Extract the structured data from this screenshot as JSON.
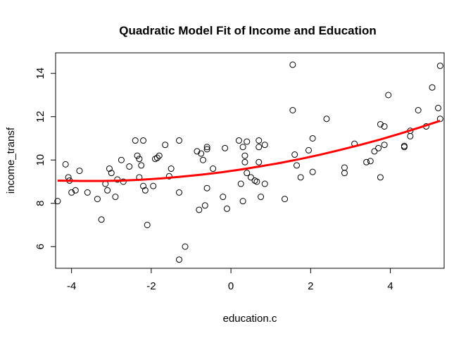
{
  "chart_data": {
    "type": "scatter",
    "title": "Quadratic Model Fit of Income and Education",
    "xlabel": "education.c",
    "ylabel": "income_transf",
    "xlim": [
      -4.4,
      5.35
    ],
    "ylim": [
      5.0,
      14.95
    ],
    "xticks": [
      -4,
      -2,
      0,
      2,
      4
    ],
    "yticks": [
      6,
      8,
      10,
      12,
      14
    ],
    "xtick_labels": [
      "-4",
      "-2",
      "0",
      "2",
      "4"
    ],
    "ytick_labels": [
      "6",
      "8",
      "10",
      "12",
      "14"
    ],
    "grid": false,
    "point_color": "#000000",
    "fit_color": "#ff0000",
    "points": [
      {
        "x": -4.35,
        "y": 8.1
      },
      {
        "x": -4.15,
        "y": 9.8
      },
      {
        "x": -4.08,
        "y": 9.2
      },
      {
        "x": -4.05,
        "y": 9.05
      },
      {
        "x": -4.0,
        "y": 8.5
      },
      {
        "x": -3.9,
        "y": 8.6
      },
      {
        "x": -3.8,
        "y": 9.5
      },
      {
        "x": -3.6,
        "y": 8.5
      },
      {
        "x": -3.35,
        "y": 8.2
      },
      {
        "x": -3.25,
        "y": 7.25
      },
      {
        "x": -3.15,
        "y": 8.9
      },
      {
        "x": -3.1,
        "y": 8.6
      },
      {
        "x": -3.05,
        "y": 9.6
      },
      {
        "x": -3.0,
        "y": 9.4
      },
      {
        "x": -2.9,
        "y": 8.3
      },
      {
        "x": -2.85,
        "y": 9.1
      },
      {
        "x": -2.75,
        "y": 10.0
      },
      {
        "x": -2.7,
        "y": 9.0
      },
      {
        "x": -2.55,
        "y": 9.7
      },
      {
        "x": -2.4,
        "y": 10.9
      },
      {
        "x": -2.35,
        "y": 10.2
      },
      {
        "x": -2.3,
        "y": 10.05
      },
      {
        "x": -2.3,
        "y": 9.2
      },
      {
        "x": -2.25,
        "y": 9.75
      },
      {
        "x": -2.2,
        "y": 10.9
      },
      {
        "x": -2.2,
        "y": 8.8
      },
      {
        "x": -2.15,
        "y": 8.6
      },
      {
        "x": -2.1,
        "y": 7.0
      },
      {
        "x": -1.95,
        "y": 8.8
      },
      {
        "x": -1.9,
        "y": 10.05
      },
      {
        "x": -1.85,
        "y": 10.1
      },
      {
        "x": -1.8,
        "y": 10.2
      },
      {
        "x": -1.65,
        "y": 10.7
      },
      {
        "x": -1.55,
        "y": 9.25
      },
      {
        "x": -1.5,
        "y": 9.6
      },
      {
        "x": -1.3,
        "y": 10.9
      },
      {
        "x": -1.3,
        "y": 8.5
      },
      {
        "x": -1.3,
        "y": 5.4
      },
      {
        "x": -1.15,
        "y": 6.0
      },
      {
        "x": -0.85,
        "y": 10.4
      },
      {
        "x": -0.8,
        "y": 7.7
      },
      {
        "x": -0.75,
        "y": 10.3
      },
      {
        "x": -0.7,
        "y": 10.0
      },
      {
        "x": -0.65,
        "y": 7.9
      },
      {
        "x": -0.6,
        "y": 10.5
      },
      {
        "x": -0.6,
        "y": 10.6
      },
      {
        "x": -0.6,
        "y": 8.7
      },
      {
        "x": -0.45,
        "y": 9.6
      },
      {
        "x": -0.2,
        "y": 8.3
      },
      {
        "x": -0.15,
        "y": 10.55
      },
      {
        "x": -0.1,
        "y": 7.75
      },
      {
        "x": 0.2,
        "y": 10.9
      },
      {
        "x": 0.25,
        "y": 8.9
      },
      {
        "x": 0.3,
        "y": 10.6
      },
      {
        "x": 0.3,
        "y": 8.1
      },
      {
        "x": 0.35,
        "y": 10.2
      },
      {
        "x": 0.35,
        "y": 9.9
      },
      {
        "x": 0.4,
        "y": 10.85
      },
      {
        "x": 0.4,
        "y": 9.4
      },
      {
        "x": 0.5,
        "y": 9.2
      },
      {
        "x": 0.6,
        "y": 9.05
      },
      {
        "x": 0.65,
        "y": 9.0
      },
      {
        "x": 0.7,
        "y": 10.9
      },
      {
        "x": 0.7,
        "y": 10.6
      },
      {
        "x": 0.7,
        "y": 9.9
      },
      {
        "x": 0.75,
        "y": 8.3
      },
      {
        "x": 0.85,
        "y": 10.7
      },
      {
        "x": 0.85,
        "y": 8.9
      },
      {
        "x": 1.35,
        "y": 8.2
      },
      {
        "x": 1.55,
        "y": 14.4
      },
      {
        "x": 1.55,
        "y": 12.3
      },
      {
        "x": 1.6,
        "y": 10.25
      },
      {
        "x": 1.65,
        "y": 9.75
      },
      {
        "x": 1.75,
        "y": 9.2
      },
      {
        "x": 1.95,
        "y": 10.45
      },
      {
        "x": 2.05,
        "y": 11.0
      },
      {
        "x": 2.05,
        "y": 9.45
      },
      {
        "x": 2.4,
        "y": 11.9
      },
      {
        "x": 2.85,
        "y": 9.65
      },
      {
        "x": 2.85,
        "y": 9.4
      },
      {
        "x": 3.1,
        "y": 10.75
      },
      {
        "x": 3.4,
        "y": 9.9
      },
      {
        "x": 3.5,
        "y": 9.95
      },
      {
        "x": 3.6,
        "y": 10.4
      },
      {
        "x": 3.7,
        "y": 10.55
      },
      {
        "x": 3.75,
        "y": 11.65
      },
      {
        "x": 3.75,
        "y": 9.2
      },
      {
        "x": 3.85,
        "y": 10.7
      },
      {
        "x": 3.85,
        "y": 11.55
      },
      {
        "x": 3.95,
        "y": 13.0
      },
      {
        "x": 4.35,
        "y": 10.65
      },
      {
        "x": 4.35,
        "y": 10.6
      },
      {
        "x": 4.5,
        "y": 11.35
      },
      {
        "x": 4.5,
        "y": 11.1
      },
      {
        "x": 4.7,
        "y": 12.3
      },
      {
        "x": 4.9,
        "y": 11.55
      },
      {
        "x": 5.05,
        "y": 13.35
      },
      {
        "x": 5.2,
        "y": 12.4
      },
      {
        "x": 5.25,
        "y": 14.35
      },
      {
        "x": 5.25,
        "y": 11.9
      }
    ],
    "fit": {
      "name": "",
      "x": [
        -4.35,
        -3.75,
        -3.25,
        -2.75,
        -2.25,
        -1.75,
        -1.25,
        -0.75,
        -0.25,
        0.25,
        0.75,
        1.25,
        1.75,
        2.25,
        2.75,
        3.25,
        3.75,
        4.25,
        4.75,
        5.25
      ],
      "y": [
        9.05,
        9.03,
        9.03,
        9.05,
        9.09,
        9.15,
        9.23,
        9.32,
        9.43,
        9.56,
        9.71,
        9.87,
        10.05,
        10.25,
        10.47,
        10.7,
        10.95,
        11.22,
        11.51,
        11.81
      ]
    }
  }
}
